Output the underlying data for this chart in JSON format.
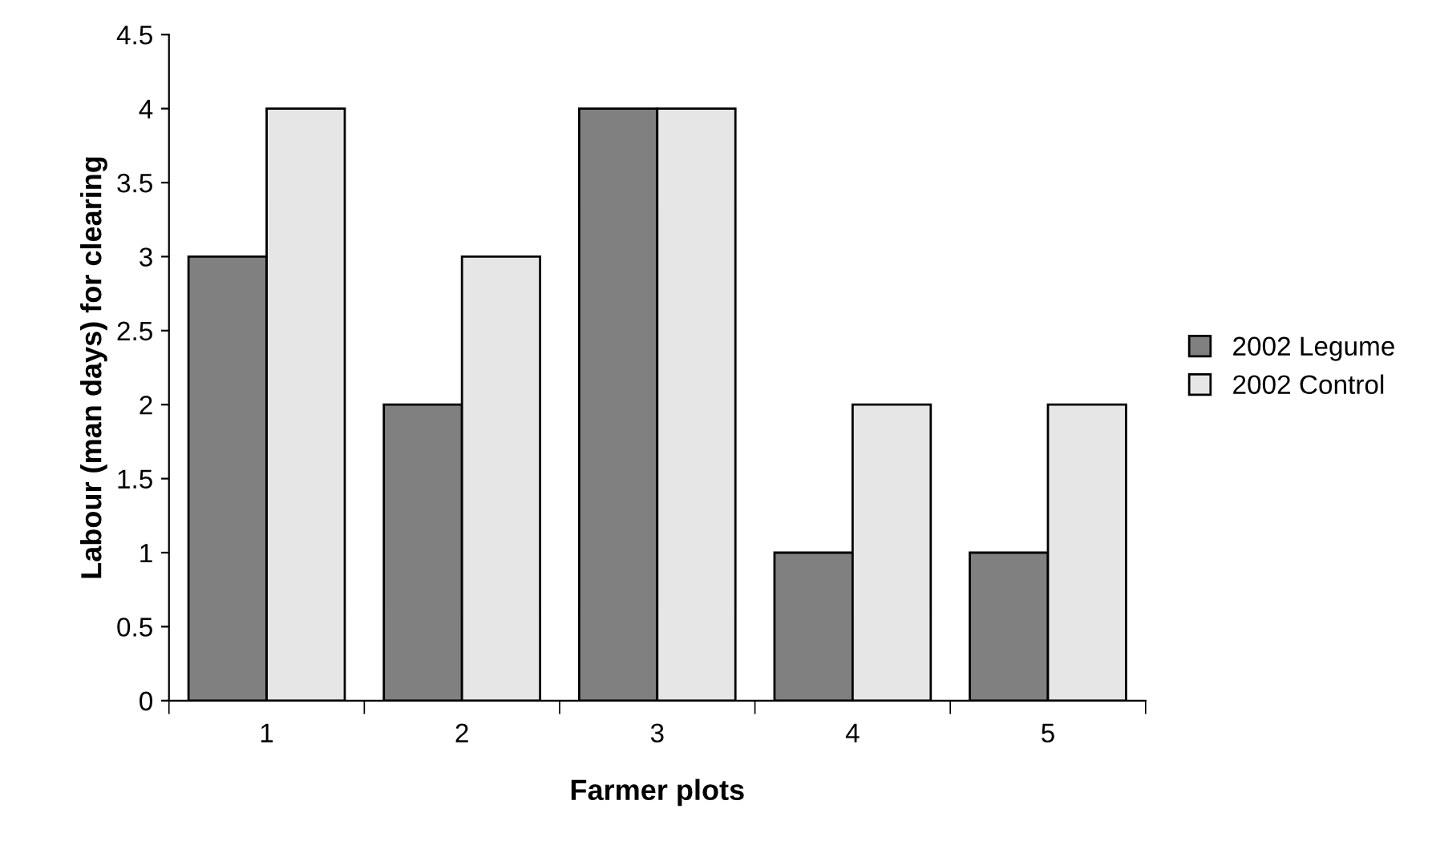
{
  "chart_data": {
    "type": "bar",
    "xlabel": "Farmer plots",
    "ylabel": "Labour (man days) for clearing",
    "categories": [
      "1",
      "2",
      "3",
      "4",
      "5"
    ],
    "series": [
      {
        "name": "2002 Legume",
        "color": "#808080",
        "values": [
          3,
          2,
          4,
          1,
          1
        ]
      },
      {
        "name": "2002 Control",
        "color": "#e6e6e6",
        "values": [
          4,
          3,
          4,
          2,
          2
        ]
      }
    ],
    "ylim": [
      0,
      4.5
    ],
    "yticks": [
      0,
      0.5,
      1,
      1.5,
      2,
      2.5,
      3,
      3.5,
      4,
      4.5
    ],
    "grid": false,
    "legend": "right"
  }
}
